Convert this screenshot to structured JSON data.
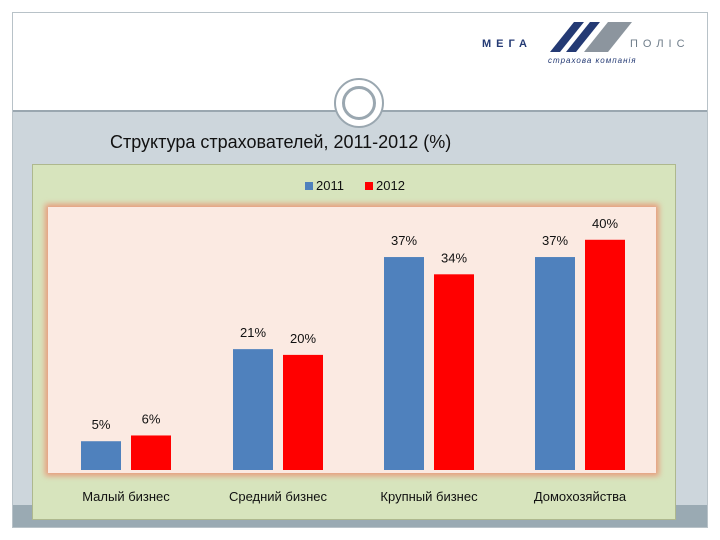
{
  "header": {
    "logo_left": "МЕГА",
    "logo_right": "ПОЛІС",
    "logo_subtitle": "страхова компанія"
  },
  "slide": {
    "title": "Структура страхователей, 2011-2012 (%)"
  },
  "colors": {
    "series_2011": "#4f81bd",
    "series_2012": "#ff0000",
    "chart_background": "#d7e4bd",
    "plot_background": "#fbeae2",
    "logo_blue": "#243a74",
    "logo_gray": "#8c959e"
  },
  "chart_data": {
    "type": "bar",
    "title": "",
    "xlabel": "",
    "ylabel": "",
    "ylim": [
      0,
      45
    ],
    "grid": false,
    "legend": "top-center",
    "categories": [
      "Малый бизнес",
      "Средний бизнес",
      "Крупный бизнес",
      "Домохозяйства"
    ],
    "series": [
      {
        "name": "2011",
        "values": [
          5,
          21,
          37,
          37
        ],
        "labels": [
          "5%",
          "21%",
          "37%",
          "37%"
        ]
      },
      {
        "name": "2012",
        "values": [
          6,
          20,
          34,
          40
        ],
        "labels": [
          "6%",
          "20%",
          "34%",
          "40%"
        ]
      }
    ]
  }
}
